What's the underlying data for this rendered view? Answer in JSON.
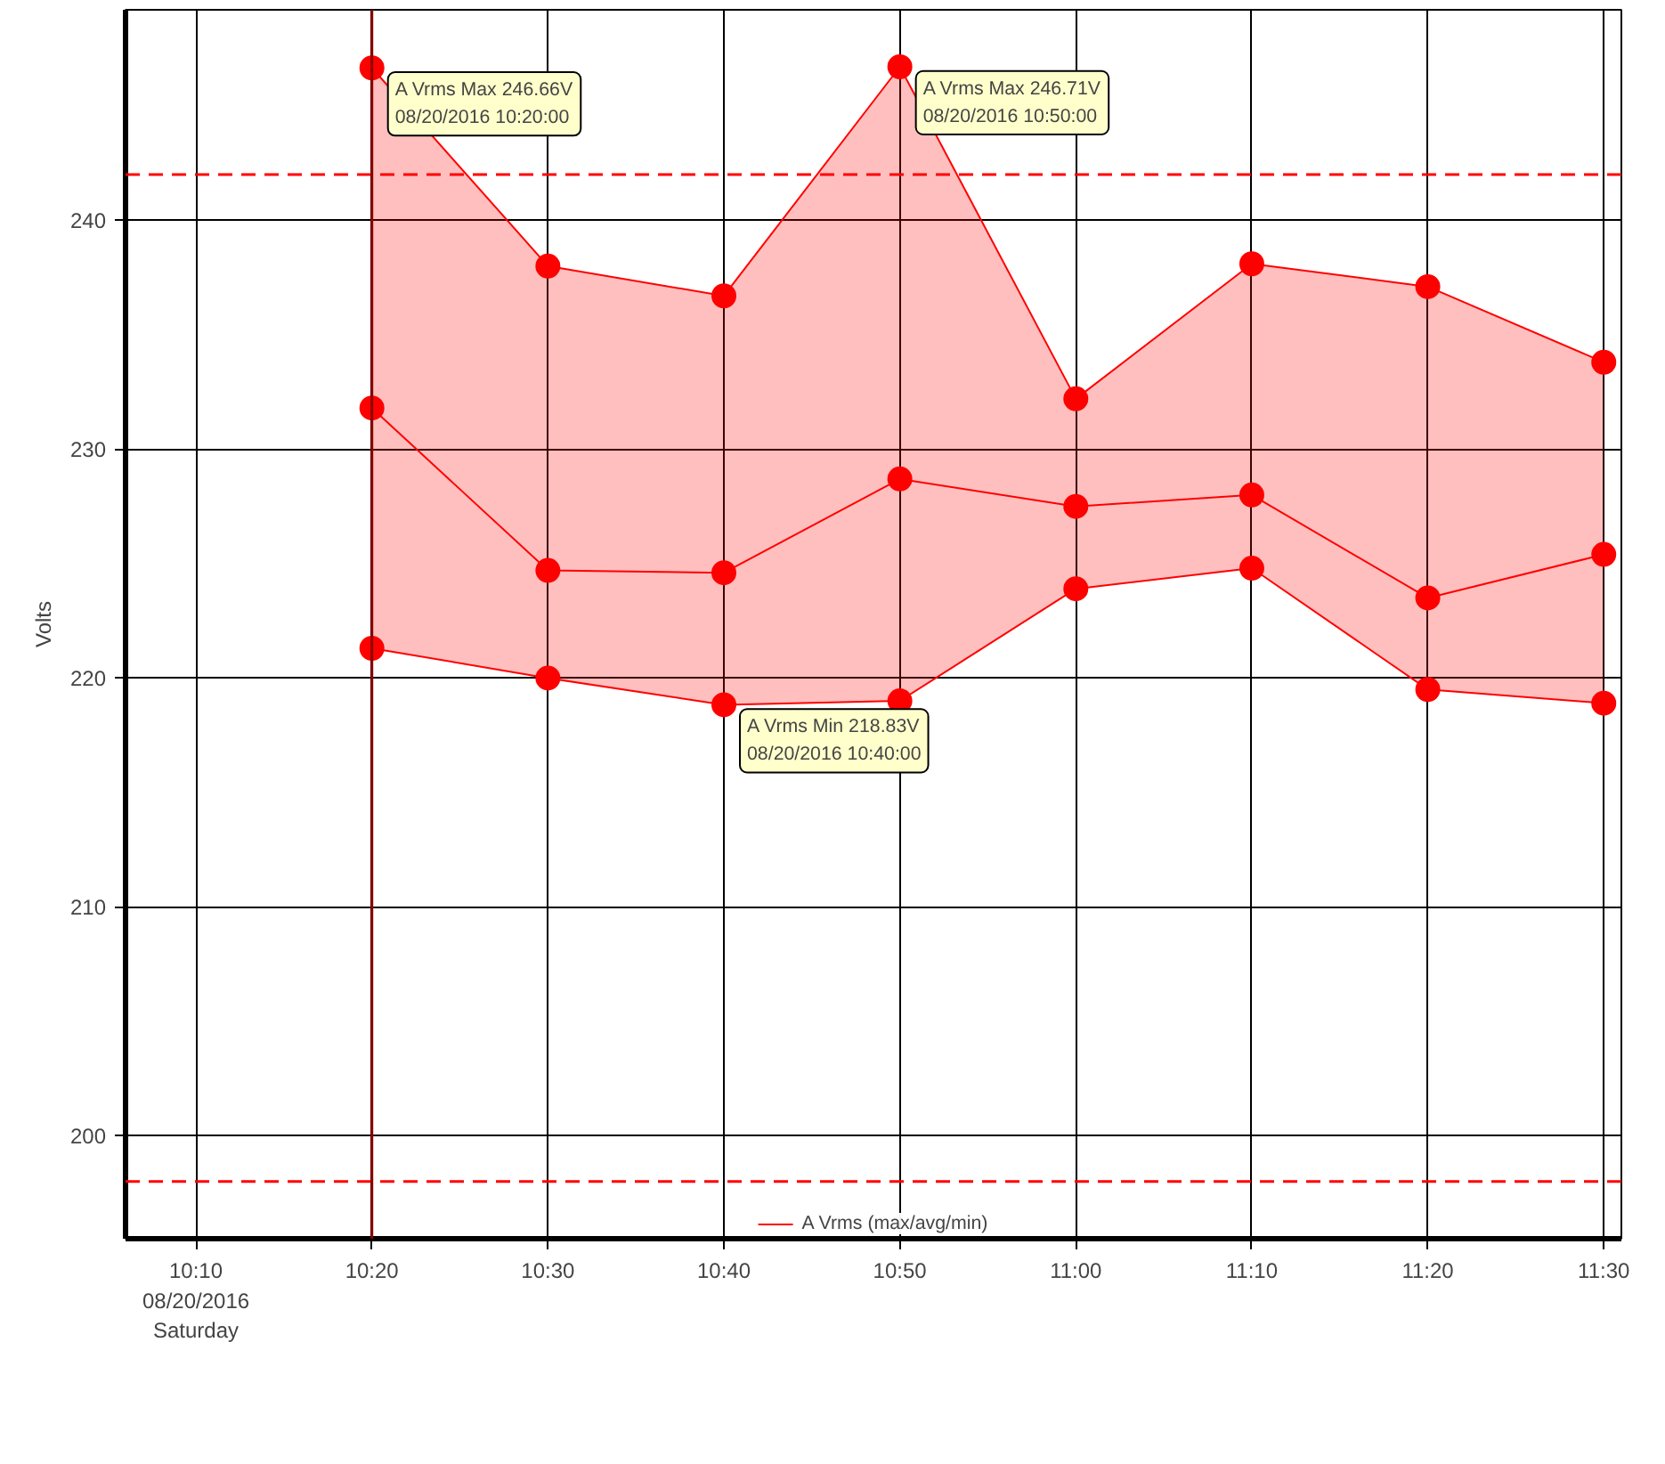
{
  "chart_data": {
    "type": "line",
    "ylabel": "Volts",
    "x": [
      "2016-08-20T10:20",
      "2016-08-20T10:30",
      "2016-08-20T10:40",
      "2016-08-20T10:50",
      "2016-08-20T11:00",
      "2016-08-20T11:10",
      "2016-08-20T11:20",
      "2016-08-20T11:30"
    ],
    "series": [
      {
        "color": "#ff0000",
        "values": [
          246.66,
          238.0,
          236.7,
          246.71,
          232.2,
          238.1,
          237.1,
          233.8
        ]
      },
      {
        "name": "A Vrms (max/avg/min)",
        "color": "#ff0000",
        "values": [
          231.8,
          224.7,
          224.6,
          228.7,
          227.5,
          228.0,
          223.5,
          225.4
        ],
        "lower": [
          221.3,
          220.0,
          218.83,
          219.0,
          223.9,
          224.8,
          219.5,
          218.9
        ],
        "upper": [
          246.66,
          238.0,
          236.7,
          246.71,
          232.2,
          238.1,
          237.1,
          233.8
        ]
      },
      {
        "color": "#ff0000",
        "values": [
          221.3,
          220.0,
          218.83,
          219.0,
          223.9,
          224.8,
          219.5,
          218.9
        ]
      }
    ],
    "xlim": [
      "2016-08-20T10:06",
      "2016-08-20T11:31"
    ],
    "xticks": [
      {
        "value": "2016-08-20T10:10",
        "label": "10:10\n08/20/2016\nSaturday"
      },
      {
        "value": "2016-08-20T10:20",
        "label": "10:20"
      },
      {
        "value": "2016-08-20T10:30",
        "label": "10:30"
      },
      {
        "value": "2016-08-20T10:40",
        "label": "10:40"
      },
      {
        "value": "2016-08-20T10:50",
        "label": "10:50"
      },
      {
        "value": "2016-08-20T11:00",
        "label": "11:00"
      },
      {
        "value": "2016-08-20T11:10",
        "label": "11:10"
      },
      {
        "value": "2016-08-20T11:20",
        "label": "11:20"
      },
      {
        "value": "2016-08-20T11:30",
        "label": "11:30"
      }
    ],
    "ylim": [
      195.5,
      249.2
    ],
    "yticks": [
      200,
      210,
      220,
      230,
      240
    ],
    "ref_lines": [
      {
        "axis": "y",
        "value": 242,
        "color": "#ff0000",
        "line_style": "dashed"
      },
      {
        "axis": "y",
        "value": 198,
        "color": "#ff0000",
        "line_style": "dashed"
      },
      {
        "axis": "x",
        "value": "2016-08-20T10:20",
        "color": "#8b0000",
        "line_style": "solid"
      }
    ],
    "annotations": [
      {
        "text": "A Vrms Max 246.66V\n08/20/2016 10:20:00",
        "x": "2016-08-20T10:20",
        "y": 246.66
      },
      {
        "text": "A Vrms Max 246.71V\n08/20/2016 10:50:00",
        "x": "2016-08-20T10:50",
        "y": 246.71
      },
      {
        "text": "A Vrms Min 218.83V\n08/20/2016 10:40:00",
        "x": "2016-08-20T10:40",
        "y": 218.83
      }
    ],
    "grid": true,
    "legend": "bottom",
    "marker": "circle",
    "line_style": "solid"
  }
}
